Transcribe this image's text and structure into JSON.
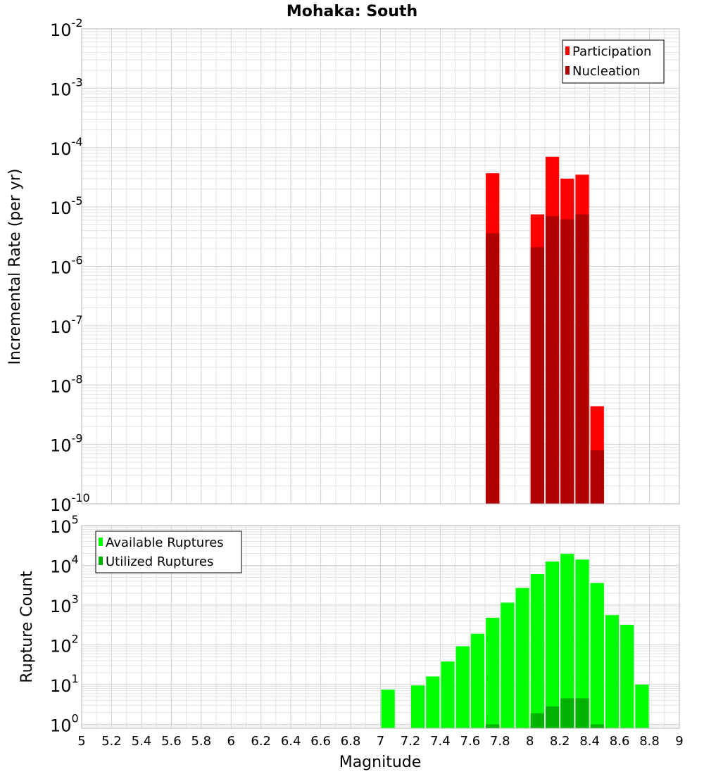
{
  "chart_data": {
    "title": "Mohaka: South",
    "xlabel": "Magnitude",
    "xlim": [
      5,
      9
    ],
    "xticks": [
      5,
      5.2,
      5.4,
      5.6,
      5.8,
      6,
      6.2,
      6.4,
      6.6,
      6.8,
      7,
      7.2,
      7.4,
      7.6,
      7.8,
      8,
      8.2,
      8.4,
      8.6,
      8.8,
      9
    ],
    "bin_width": 0.1,
    "panels": [
      {
        "name": "rate",
        "type": "bar",
        "scale": "log",
        "ylabel": "Incremental Rate (per yr)",
        "ylim_exp": [
          -10,
          -2
        ],
        "legend_position": "top-right",
        "series": [
          {
            "name": "Participation",
            "color": "#ff0000",
            "points": [
              {
                "x": 7.75,
                "y": 3.7e-05
              },
              {
                "x": 8.05,
                "y": 7.5e-06
              },
              {
                "x": 8.15,
                "y": 7e-05
              },
              {
                "x": 8.25,
                "y": 3e-05
              },
              {
                "x": 8.35,
                "y": 3.5e-05
              },
              {
                "x": 8.45,
                "y": 4.4e-09
              }
            ]
          },
          {
            "name": "Nucleation",
            "color": "#b10000",
            "points": [
              {
                "x": 7.75,
                "y": 3.6e-06
              },
              {
                "x": 8.05,
                "y": 2.1e-06
              },
              {
                "x": 8.15,
                "y": 7e-06
              },
              {
                "x": 8.25,
                "y": 6.2e-06
              },
              {
                "x": 8.35,
                "y": 7.5e-06
              },
              {
                "x": 8.45,
                "y": 8e-10
              }
            ]
          }
        ]
      },
      {
        "name": "count",
        "type": "bar",
        "scale": "log",
        "ylabel": "Rupture Count",
        "ylim_exp": [
          -0.1,
          5
        ],
        "legend_position": "top-left",
        "series": [
          {
            "name": "Available Ruptures",
            "color": "#00ff00",
            "points": [
              {
                "x": 7.05,
                "y": 7.5
              },
              {
                "x": 7.25,
                "y": 9.5
              },
              {
                "x": 7.35,
                "y": 16
              },
              {
                "x": 7.45,
                "y": 38
              },
              {
                "x": 7.55,
                "y": 92
              },
              {
                "x": 7.65,
                "y": 190
              },
              {
                "x": 7.75,
                "y": 480
              },
              {
                "x": 7.85,
                "y": 1150
              },
              {
                "x": 7.95,
                "y": 2700
              },
              {
                "x": 8.05,
                "y": 6000
              },
              {
                "x": 8.15,
                "y": 12500
              },
              {
                "x": 8.25,
                "y": 19500
              },
              {
                "x": 8.35,
                "y": 14000
              },
              {
                "x": 8.45,
                "y": 3600
              },
              {
                "x": 8.55,
                "y": 560
              },
              {
                "x": 8.65,
                "y": 320
              },
              {
                "x": 8.75,
                "y": 10
              }
            ]
          },
          {
            "name": "Utilized Ruptures",
            "color": "#00b300",
            "points": [
              {
                "x": 7.75,
                "y": 1.0
              },
              {
                "x": 8.05,
                "y": 1.9
              },
              {
                "x": 8.15,
                "y": 2.8
              },
              {
                "x": 8.25,
                "y": 4.5
              },
              {
                "x": 8.35,
                "y": 4.5
              },
              {
                "x": 8.45,
                "y": 1.0
              }
            ]
          }
        ]
      }
    ]
  }
}
